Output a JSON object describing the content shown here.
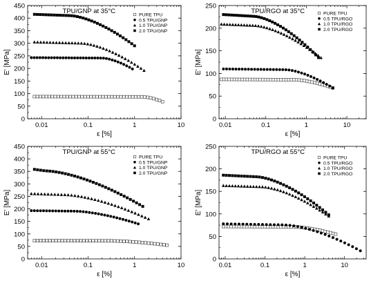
{
  "chart_data": [
    {
      "type": "scatter",
      "title": "TPU/GNP at 35°C",
      "xlabel": "ε [%]",
      "ylabel": "E' [MPa]",
      "x_scale": "log",
      "xlim": [
        0.005,
        10
      ],
      "ylim": [
        0,
        450
      ],
      "x_ticks": [
        0.01,
        0.1,
        1,
        10
      ],
      "x_tick_labels": [
        "0.01",
        "0.1",
        "1",
        "10"
      ],
      "y_ticks": [
        0,
        50,
        100,
        150,
        200,
        250,
        300,
        350,
        400,
        450
      ],
      "y_tick_labels": [
        "0",
        "50",
        "100",
        "150",
        "200",
        "250",
        "300",
        "350",
        "400",
        "450"
      ],
      "legend_position": "top-right",
      "series": [
        {
          "name": "PURE TPU",
          "marker": "open-square",
          "x_range": [
            0.007,
            4.0
          ],
          "y_start": 88,
          "plateau_to": 1.5,
          "y_end": 68
        },
        {
          "name": "0.5 TPU/GNP",
          "marker": "circle",
          "x_range": [
            0.006,
            0.9
          ],
          "y_start": 243,
          "plateau_to": 0.2,
          "y_end": 198
        },
        {
          "name": "1.0 TPU/GNP",
          "marker": "triangle",
          "x_range": [
            0.007,
            1.6
          ],
          "y_start": 305,
          "plateau_to": 0.07,
          "y_end": 192
        },
        {
          "name": "2.0 TPU/GNP",
          "marker": "square",
          "x_range": [
            0.007,
            1.0
          ],
          "y_start": 415,
          "plateau_to": 0.04,
          "y_end": 290
        }
      ]
    },
    {
      "type": "scatter",
      "title": "TPU/RGO at 35°C",
      "xlabel": "ε [%]",
      "ylabel": "E' [MPa]",
      "x_scale": "log",
      "xlim": [
        0.007,
        30
      ],
      "ylim": [
        0,
        250
      ],
      "x_ticks": [
        0.01,
        0.1,
        1,
        10
      ],
      "x_tick_labels": [
        "0.01",
        "0.1",
        "1",
        "10"
      ],
      "y_ticks": [
        0,
        50,
        100,
        150,
        200,
        250
      ],
      "y_tick_labels": [
        "0",
        "50",
        "100",
        "150",
        "200",
        "250"
      ],
      "legend_position": "top-right",
      "series": [
        {
          "name": "PURE TPU",
          "marker": "open-square",
          "x_range": [
            0.008,
            4.5
          ],
          "y_start": 87,
          "plateau_to": 0.5,
          "y_end": 68
        },
        {
          "name": "0.5 TPU/RGO",
          "marker": "circle",
          "x_range": [
            0.009,
            4.5
          ],
          "y_start": 110,
          "plateau_to": 0.3,
          "y_end": 68
        },
        {
          "name": "1.0 TPU/RGO",
          "marker": "triangle",
          "x_range": [
            0.008,
            2.3
          ],
          "y_start": 209,
          "plateau_to": 0.05,
          "y_end": 135
        },
        {
          "name": "2.0 TPU/RGO",
          "marker": "square",
          "x_range": [
            0.009,
            2.0
          ],
          "y_start": 230,
          "plateau_to": 0.05,
          "y_end": 135
        }
      ]
    },
    {
      "type": "scatter",
      "title": "TPU/GNP at 55°C",
      "xlabel": "ε [%]",
      "ylabel": "E' [MPa]",
      "x_scale": "log",
      "xlim": [
        0.005,
        10
      ],
      "ylim": [
        0,
        450
      ],
      "x_ticks": [
        0.01,
        0.1,
        1,
        10
      ],
      "x_tick_labels": [
        "0.01",
        "0.1",
        "1",
        "10"
      ],
      "y_ticks": [
        0,
        50,
        100,
        150,
        200,
        250,
        300,
        350,
        400,
        450
      ],
      "y_tick_labels": [
        "0",
        "50",
        "100",
        "150",
        "200",
        "250",
        "300",
        "350",
        "400",
        "450"
      ],
      "legend_position": "top-right",
      "series": [
        {
          "name": "PURE TPU",
          "marker": "open-square",
          "x_range": [
            0.007,
            5.0
          ],
          "y_start": 73,
          "plateau_to": 0.3,
          "y_end": 55
        },
        {
          "name": "0.5 TPU/GNP",
          "marker": "circle",
          "x_range": [
            0.006,
            1.2
          ],
          "y_start": 193,
          "plateau_to": 0.05,
          "y_end": 140
        },
        {
          "name": "1.0 TPU/GNP",
          "marker": "triangle",
          "x_range": [
            0.006,
            2.0
          ],
          "y_start": 261,
          "plateau_to": 0.03,
          "y_end": 160
        },
        {
          "name": "2.0 TPU/GNP",
          "marker": "square",
          "x_range": [
            0.007,
            1.5
          ],
          "y_start": 358,
          "plateau_to": 0.012,
          "y_end": 210
        }
      ]
    },
    {
      "type": "scatter",
      "title": "TPU/RGO at 55°C",
      "xlabel": "ε [%]",
      "ylabel": "E' [MPa]",
      "x_scale": "log",
      "xlim": [
        0.007,
        35
      ],
      "ylim": [
        0,
        250
      ],
      "x_ticks": [
        0.01,
        0.1,
        1,
        10
      ],
      "x_tick_labels": [
        "0.01",
        "0.1",
        "1",
        "10"
      ],
      "y_ticks": [
        0,
        50,
        100,
        150,
        200,
        250
      ],
      "y_tick_labels": [
        "0",
        "50",
        "100",
        "150",
        "200",
        "250"
      ],
      "legend_position": "top-right",
      "series": [
        {
          "name": "PURE TPU",
          "marker": "open-square",
          "x_range": [
            0.009,
            6.0
          ],
          "y_start": 72,
          "plateau_to": 0.5,
          "y_end": 55
        },
        {
          "name": "0.5 TPU/RGO",
          "marker": "circle",
          "x_range": [
            0.009,
            25
          ],
          "y_start": 78,
          "plateau_to": 0.3,
          "y_end": 18
        },
        {
          "name": "1.0 TPU/RGO",
          "marker": "triangle",
          "x_range": [
            0.009,
            4.0
          ],
          "y_start": 163,
          "plateau_to": 0.08,
          "y_end": 95
        },
        {
          "name": "2.0 TPU/RGO",
          "marker": "square",
          "x_range": [
            0.009,
            4.0
          ],
          "y_start": 186,
          "plateau_to": 0.06,
          "y_end": 98
        }
      ]
    }
  ]
}
